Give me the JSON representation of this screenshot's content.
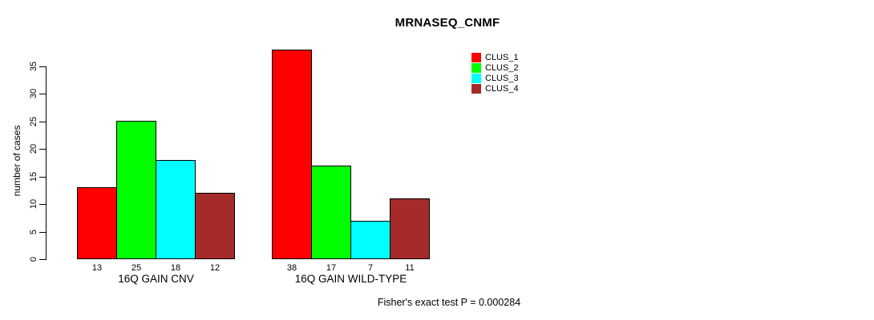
{
  "chart_data": {
    "type": "bar",
    "title": "MRNASEQ_CNMF",
    "ylabel": "number of cases",
    "xlabel": "",
    "categories": [
      "16Q GAIN CNV",
      "16Q GAIN WILD-TYPE"
    ],
    "series": [
      {
        "name": "CLUS_1",
        "color": "#ff0000",
        "values": [
          13,
          38
        ]
      },
      {
        "name": "CLUS_2",
        "color": "#00ff00",
        "values": [
          25,
          17
        ]
      },
      {
        "name": "CLUS_3",
        "color": "#00ffff",
        "values": [
          18,
          7
        ]
      },
      {
        "name": "CLUS_4",
        "color": "#a52a2a",
        "values": [
          12,
          11
        ]
      }
    ],
    "yticks": [
      0,
      5,
      10,
      15,
      20,
      25,
      30,
      35
    ],
    "ylim": [
      0,
      38
    ],
    "grid": false,
    "legend_position": "top-right",
    "bar_value_labels_shown": true,
    "annotation": "Fisher's exact test P = 0.000284"
  }
}
